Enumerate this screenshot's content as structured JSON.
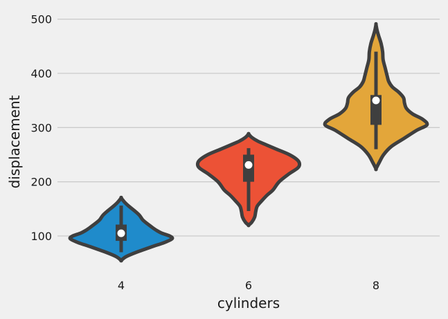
{
  "chart_data": {
    "type": "violin",
    "title": "",
    "xlabel": "cylinders",
    "ylabel": "displacement",
    "ylim": [
      40,
      520
    ],
    "yticks": [
      100,
      200,
      300,
      400,
      500
    ],
    "grid": "horizontal",
    "categories": [
      "4",
      "6",
      "8"
    ],
    "groups": [
      {
        "category": "4",
        "color": "#1f8bcb",
        "min": 70,
        "q1": 91,
        "median": 105,
        "q3": 121,
        "max": 156,
        "kde_range": [
          55,
          170
        ],
        "density": [
          [
            55,
            0.0
          ],
          [
            62,
            0.1
          ],
          [
            70,
            0.3
          ],
          [
            80,
            0.6
          ],
          [
            88,
            0.85
          ],
          [
            95,
            1.0
          ],
          [
            100,
            0.95
          ],
          [
            105,
            0.8
          ],
          [
            110,
            0.7
          ],
          [
            115,
            0.62
          ],
          [
            120,
            0.55
          ],
          [
            125,
            0.48
          ],
          [
            130,
            0.42
          ],
          [
            138,
            0.36
          ],
          [
            145,
            0.28
          ],
          [
            155,
            0.15
          ],
          [
            162,
            0.07
          ],
          [
            170,
            0.0
          ]
        ]
      },
      {
        "category": "6",
        "color": "#ec5236",
        "min": 146,
        "q1": 200,
        "median": 231,
        "q3": 250,
        "max": 262,
        "kde_range": [
          120,
          288
        ],
        "density": [
          [
            120,
            0.0
          ],
          [
            125,
            0.06
          ],
          [
            135,
            0.12
          ],
          [
            145,
            0.14
          ],
          [
            155,
            0.17
          ],
          [
            165,
            0.26
          ],
          [
            175,
            0.36
          ],
          [
            185,
            0.48
          ],
          [
            200,
            0.6
          ],
          [
            215,
            0.8
          ],
          [
            225,
            0.96
          ],
          [
            232,
            1.0
          ],
          [
            240,
            0.96
          ],
          [
            250,
            0.8
          ],
          [
            260,
            0.55
          ],
          [
            268,
            0.35
          ],
          [
            275,
            0.18
          ],
          [
            282,
            0.06
          ],
          [
            288,
            0.0
          ]
        ]
      },
      {
        "category": "8",
        "color": "#e3a63a",
        "min": 260,
        "q1": 305,
        "median": 350,
        "q3": 360,
        "max": 440,
        "kde_range": [
          224,
          490
        ],
        "density": [
          [
            224,
            0.0
          ],
          [
            235,
            0.06
          ],
          [
            250,
            0.15
          ],
          [
            265,
            0.3
          ],
          [
            280,
            0.55
          ],
          [
            295,
            0.8
          ],
          [
            305,
            1.0
          ],
          [
            315,
            0.92
          ],
          [
            325,
            0.72
          ],
          [
            335,
            0.6
          ],
          [
            345,
            0.56
          ],
          [
            355,
            0.54
          ],
          [
            365,
            0.45
          ],
          [
            375,
            0.32
          ],
          [
            385,
            0.25
          ],
          [
            395,
            0.22
          ],
          [
            410,
            0.18
          ],
          [
            425,
            0.14
          ],
          [
            440,
            0.13
          ],
          [
            455,
            0.1
          ],
          [
            470,
            0.05
          ],
          [
            480,
            0.02
          ],
          [
            490,
            0.0
          ]
        ]
      }
    ]
  }
}
